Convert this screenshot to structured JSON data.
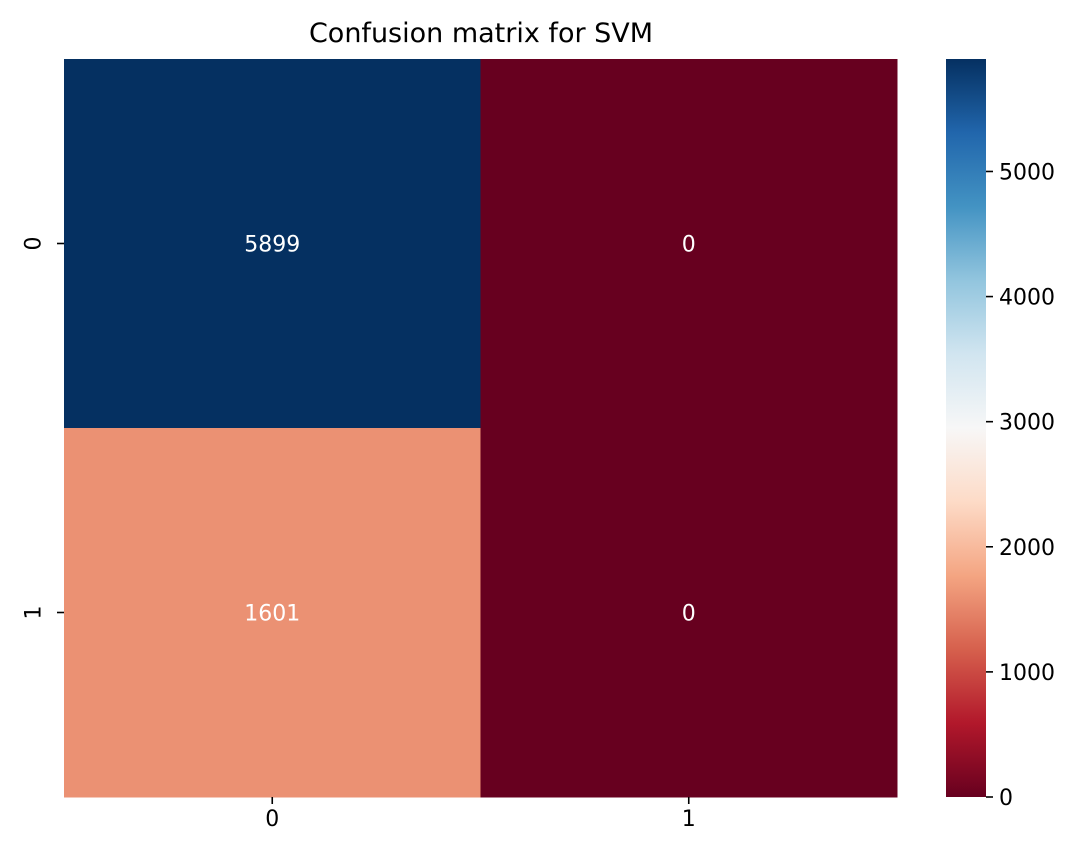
{
  "chart_data": {
    "type": "heatmap",
    "title": "Confusion matrix for SVM",
    "xlabel": "",
    "ylabel": "",
    "x_categories": [
      "0",
      "1"
    ],
    "y_categories": [
      "0",
      "1"
    ],
    "values": [
      [
        5899,
        0
      ],
      [
        1601,
        0
      ]
    ],
    "annotations": [
      "5899",
      "0",
      "1601",
      "0"
    ],
    "colormap": "RdBu",
    "colormap_stops": [
      "#67001f",
      "#b2182b",
      "#d6604d",
      "#f4a582",
      "#fddbc7",
      "#f7f7f7",
      "#d1e5f0",
      "#92c5de",
      "#4393c3",
      "#2166ac",
      "#053061"
    ],
    "vmin": 0,
    "vmax": 5899,
    "colorbar": {
      "ticks": [
        0,
        1000,
        2000,
        3000,
        4000,
        5000
      ],
      "tick_labels": [
        "0",
        "1000",
        "2000",
        "3000",
        "4000",
        "5000"
      ],
      "placement": "right"
    },
    "annotation_color": "#ffffff",
    "grid": false
  }
}
